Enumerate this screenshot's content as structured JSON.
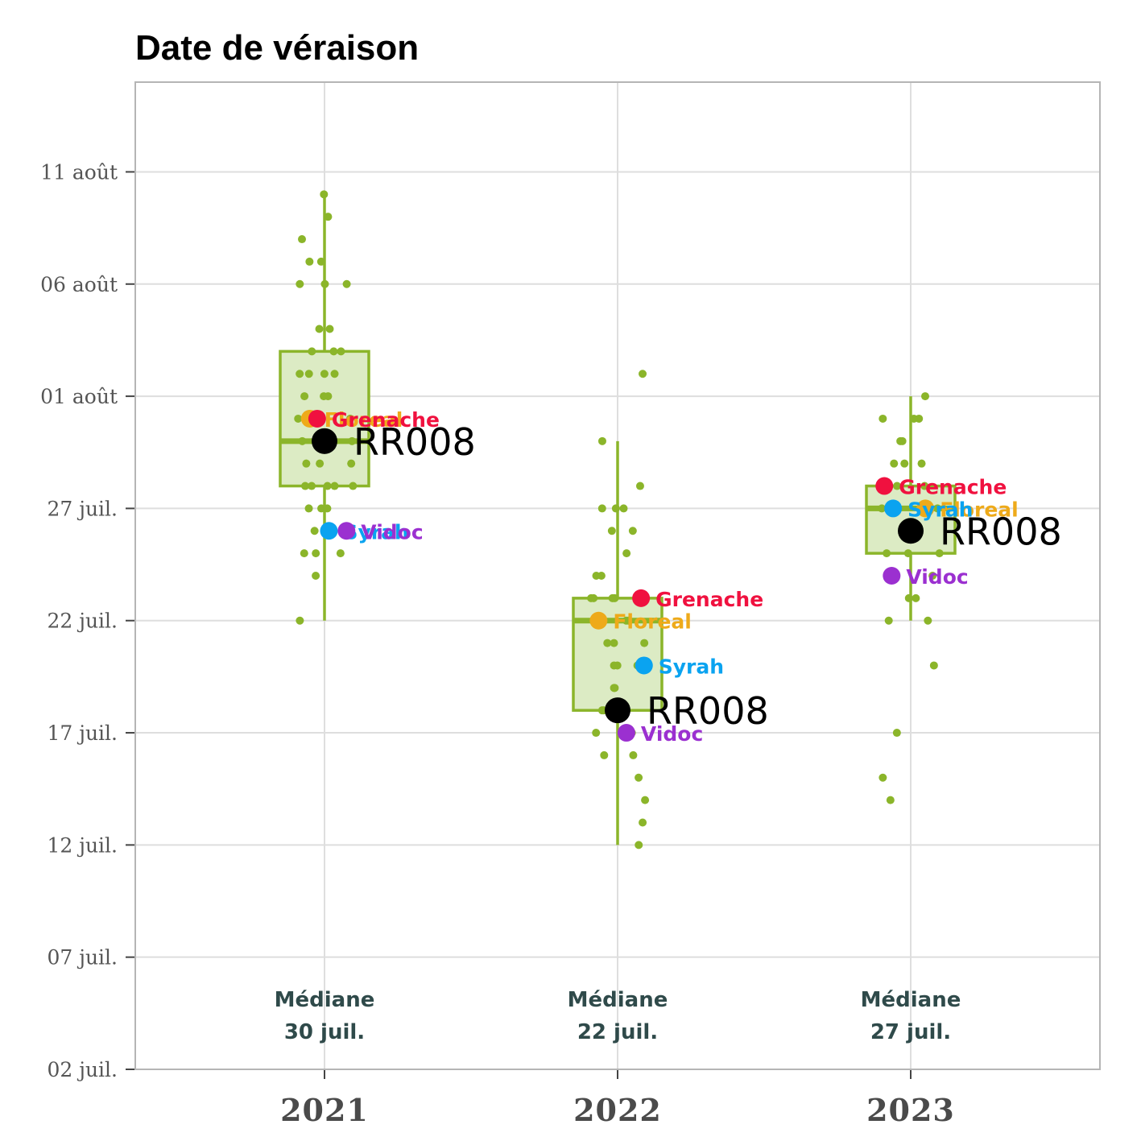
{
  "chart_data": {
    "type": "box",
    "title": "Date de véraison",
    "xlabel": "",
    "ylabel": "",
    "categories": [
      "2021",
      "2022",
      "2023"
    ],
    "y_axis": {
      "type": "date",
      "range": [
        "2023-07-02",
        "2023-08-15"
      ],
      "ticks": [
        "2023-07-02",
        "2023-07-07",
        "2023-07-12",
        "2023-07-17",
        "2023-07-22",
        "2023-07-27",
        "2023-08-01",
        "2023-08-06",
        "2023-08-11"
      ],
      "tick_labels": [
        "02 juil.",
        "07 juil.",
        "12 juil.",
        "17 juil.",
        "22 juil.",
        "27 juil.",
        "01 août",
        "06 août",
        "11 août"
      ]
    },
    "grid": true,
    "colors": {
      "box": "#8bb52a",
      "box_fill": "#dcebc4",
      "Grenache": "#f0113f",
      "Floreal": "#eeaa1a",
      "Syrah": "#0aa3f0",
      "Vidoc": "#9b30d0",
      "RR008": "#000000"
    },
    "boxes": [
      {
        "category": "2021",
        "whisker_low": "2023-07-22",
        "q1": "2023-07-28",
        "median": "2023-07-30",
        "q3": "2023-08-03",
        "whisker_high": "2023-08-10"
      },
      {
        "category": "2022",
        "whisker_low": "2023-07-12",
        "q1": "2023-07-18",
        "median": "2023-07-22",
        "q3": "2023-07-23",
        "whisker_high": "2023-07-30"
      },
      {
        "category": "2023",
        "whisker_low": "2023-07-22",
        "q1": "2023-07-25",
        "median": "2023-07-27",
        "q3": "2023-07-28",
        "whisker_high": "2023-08-01"
      }
    ],
    "median_labels": [
      {
        "category": "2021",
        "line1": "Médiane",
        "line2": "30 juil."
      },
      {
        "category": "2022",
        "line1": "Médiane",
        "line2": "22 juil."
      },
      {
        "category": "2023",
        "line1": "Médiane",
        "line2": "27 juil."
      }
    ],
    "jitter_points": [
      {
        "category": "2021",
        "dates": [
          "2023-08-10",
          "2023-08-09",
          "2023-08-08",
          "2023-08-07",
          "2023-08-07",
          "2023-08-06",
          "2023-08-06",
          "2023-08-06",
          "2023-08-04",
          "2023-08-04",
          "2023-08-03",
          "2023-08-03",
          "2023-08-03",
          "2023-08-02",
          "2023-08-02",
          "2023-08-02",
          "2023-08-02",
          "2023-08-01",
          "2023-08-01",
          "2023-08-01",
          "2023-07-31",
          "2023-07-31",
          "2023-07-31",
          "2023-07-30",
          "2023-07-30",
          "2023-07-30",
          "2023-07-29",
          "2023-07-29",
          "2023-07-29",
          "2023-07-28",
          "2023-07-28",
          "2023-07-28",
          "2023-07-28",
          "2023-07-28",
          "2023-07-27",
          "2023-07-27",
          "2023-07-27",
          "2023-07-26",
          "2023-07-25",
          "2023-07-25",
          "2023-07-25",
          "2023-07-24",
          "2023-07-22"
        ]
      },
      {
        "category": "2022",
        "dates": [
          "2023-08-02",
          "2023-07-30",
          "2023-07-28",
          "2023-07-27",
          "2023-07-27",
          "2023-07-27",
          "2023-07-26",
          "2023-07-26",
          "2023-07-25",
          "2023-07-24",
          "2023-07-24",
          "2023-07-23",
          "2023-07-23",
          "2023-07-23",
          "2023-07-23",
          "2023-07-22",
          "2023-07-22",
          "2023-07-21",
          "2023-07-21",
          "2023-07-21",
          "2023-07-20",
          "2023-07-20",
          "2023-07-20",
          "2023-07-19",
          "2023-07-19",
          "2023-07-18",
          "2023-07-18",
          "2023-07-17",
          "2023-07-17",
          "2023-07-16",
          "2023-07-16",
          "2023-07-15",
          "2023-07-14",
          "2023-07-13",
          "2023-07-12"
        ]
      },
      {
        "category": "2023",
        "dates": [
          "2023-08-01",
          "2023-07-31",
          "2023-07-31",
          "2023-07-31",
          "2023-07-30",
          "2023-07-30",
          "2023-07-29",
          "2023-07-29",
          "2023-07-29",
          "2023-07-28",
          "2023-07-28",
          "2023-07-27",
          "2023-07-27",
          "2023-07-26",
          "2023-07-26",
          "2023-07-26",
          "2023-07-25",
          "2023-07-25",
          "2023-07-25",
          "2023-07-24",
          "2023-07-23",
          "2023-07-23",
          "2023-07-22",
          "2023-07-22",
          "2023-07-20",
          "2023-07-17",
          "2023-07-15",
          "2023-07-14"
        ]
      }
    ],
    "highlight_points": [
      {
        "category": "2021",
        "name": "Floreal",
        "date": "2023-07-31",
        "size": "medium",
        "label_dx": 0.06
      },
      {
        "category": "2021",
        "name": "Grenache",
        "date": "2023-07-31",
        "size": "medium",
        "label_dx": 0.06
      },
      {
        "category": "2021",
        "name": "RR008",
        "date": "2023-07-30",
        "size": "large",
        "label_dx": 0.1
      },
      {
        "category": "2021",
        "name": "Syrah",
        "date": "2023-07-26",
        "size": "medium",
        "label_dx": 0.06
      },
      {
        "category": "2021",
        "name": "Vidoc",
        "date": "2023-07-26",
        "size": "medium",
        "label_dx": 0.06
      },
      {
        "category": "2022",
        "name": "Grenache",
        "date": "2023-07-23",
        "size": "medium",
        "label_dx": 0.06
      },
      {
        "category": "2022",
        "name": "Floreal",
        "date": "2023-07-22",
        "size": "medium",
        "label_dx": 0.06
      },
      {
        "category": "2022",
        "name": "Syrah",
        "date": "2023-07-20",
        "size": "medium",
        "label_dx": 0.06
      },
      {
        "category": "2022",
        "name": "RR008",
        "date": "2023-07-18",
        "size": "large",
        "label_dx": 0.1
      },
      {
        "category": "2022",
        "name": "Vidoc",
        "date": "2023-07-17",
        "size": "medium",
        "label_dx": 0.06
      },
      {
        "category": "2023",
        "name": "Grenache",
        "date": "2023-07-28",
        "size": "medium",
        "label_dx": 0.06
      },
      {
        "category": "2023",
        "name": "Floreal",
        "date": "2023-07-27",
        "size": "medium",
        "label_dx": 0.06
      },
      {
        "category": "2023",
        "name": "Syrah",
        "date": "2023-07-27",
        "size": "medium",
        "label_dx": 0.06
      },
      {
        "category": "2023",
        "name": "RR008",
        "date": "2023-07-26",
        "size": "large",
        "label_dx": 0.1
      },
      {
        "category": "2023",
        "name": "Vidoc",
        "date": "2023-07-24",
        "size": "medium",
        "label_dx": 0.06
      }
    ]
  }
}
